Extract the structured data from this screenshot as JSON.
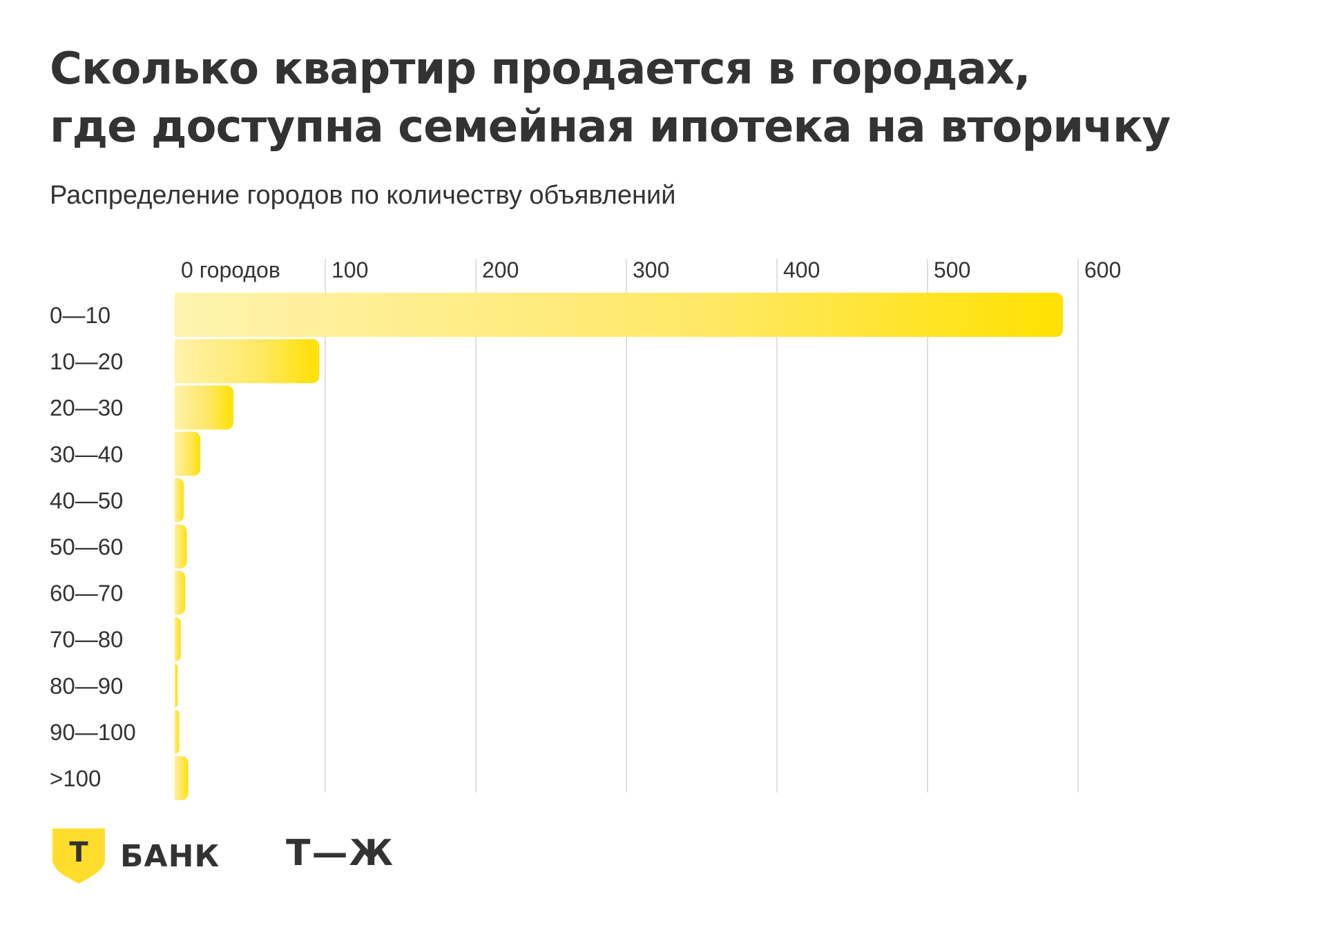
{
  "title_lines": [
    "Сколько квартир продается в городах,",
    "где доступна семейная ипотека на вторичку"
  ],
  "subtitle": "Распределение городов по количеству объявлений",
  "colors": {
    "bar_start": "#FFF3B0",
    "bar_end": "#FFE100",
    "grid": "#E0E0E0",
    "text": "#333333",
    "brand": "#FFDD2D"
  },
  "chart_data": {
    "type": "bar",
    "orientation": "horizontal",
    "title": "Сколько квартир продается в городах, где доступна семейная ипотека на вторичку",
    "subtitle": "Распределение городов по количеству объявлений",
    "categories": [
      "0—10",
      "10—20",
      "20—30",
      "30—40",
      "40—50",
      "50—60",
      "60—70",
      "70—80",
      "80—90",
      "90—100",
      ">100"
    ],
    "values": [
      590,
      96,
      39,
      17,
      6,
      8,
      7,
      4,
      2,
      3,
      9
    ],
    "xlim": [
      0,
      600
    ],
    "xticks": [
      0,
      100,
      200,
      300,
      400,
      500,
      600
    ],
    "xtick_labels": [
      "0 городов",
      "100",
      "200",
      "300",
      "400",
      "500",
      "600"
    ],
    "xaxis_position": "top",
    "grid": true,
    "xlabel": "",
    "ylabel": ""
  },
  "logos": {
    "bank_letter": "Т",
    "bank_word": "БАНК",
    "tj": "Т—Ж"
  }
}
